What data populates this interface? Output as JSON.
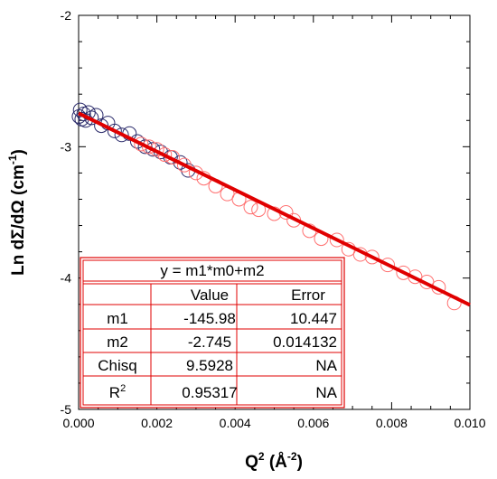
{
  "chart_data": {
    "type": "scatter",
    "xlabel": {
      "base": "Q",
      "base_sup": "2",
      "unit": " (Å",
      "unit_sup": "-2",
      "close": ")"
    },
    "ylabel": {
      "base": "Ln dΣ/dΩ (cm",
      "sup": "-1",
      "close": ")"
    },
    "xlim": [
      0.0,
      0.01
    ],
    "ylim": [
      -5,
      -2
    ],
    "x_ticks": [
      "0.000",
      "0.002",
      "0.004",
      "0.006",
      "0.008",
      "0.010"
    ],
    "y_ticks": [
      "-2",
      "-3",
      "-4",
      "-5"
    ],
    "grid": false,
    "colors": {
      "fit_line": "#e00000",
      "table": "#e00000",
      "marker_red": "#ff6666",
      "marker_navy": "#2a2a6a"
    },
    "series": [
      {
        "marker": "open-circle",
        "color": "#2a2a6a",
        "x": [
          1e-05,
          4e-05,
          8e-05,
          0.00013,
          0.00018,
          0.00025,
          0.00033,
          0.00045,
          0.00058,
          0.00075,
          0.00092,
          0.0011,
          0.0013,
          0.0015,
          0.0017,
          0.0019,
          0.0021,
          0.00235,
          0.0026,
          0.0028
        ],
        "y": [
          -2.77,
          -2.72,
          -2.79,
          -2.75,
          -2.8,
          -2.74,
          -2.78,
          -2.76,
          -2.84,
          -2.82,
          -2.88,
          -2.91,
          -2.9,
          -2.96,
          -3.0,
          -3.02,
          -3.04,
          -3.08,
          -3.12,
          -3.18
        ]
      },
      {
        "marker": "open-circle",
        "color": "#ff7070",
        "x": [
          0.0016,
          0.0018,
          0.002,
          0.0022,
          0.0024,
          0.0027,
          0.003,
          0.0032,
          0.0035,
          0.0038,
          0.0041,
          0.0044,
          0.0046,
          0.005,
          0.0053,
          0.0055,
          0.0059,
          0.0062,
          0.0066,
          0.0069,
          0.0072,
          0.0075,
          0.0079,
          0.0083,
          0.0086,
          0.0089,
          0.0092,
          0.0096
        ],
        "y": [
          -2.98,
          -3.0,
          -3.02,
          -3.06,
          -3.08,
          -3.14,
          -3.2,
          -3.24,
          -3.3,
          -3.36,
          -3.4,
          -3.46,
          -3.48,
          -3.51,
          -3.5,
          -3.56,
          -3.64,
          -3.7,
          -3.71,
          -3.78,
          -3.82,
          -3.84,
          -3.9,
          -3.96,
          -3.99,
          -4.03,
          -4.07,
          -4.19
        ]
      }
    ],
    "fit": {
      "slope": -145.98,
      "intercept": -2.745,
      "x_range": [
        0.0,
        0.01
      ]
    },
    "fit_table": {
      "equation": "y = m1*m0+m2",
      "columns": [
        "",
        "Value",
        "Error"
      ],
      "rows": [
        {
          "name": "m1",
          "name_sup": "",
          "value": "-145.98",
          "error": "10.447"
        },
        {
          "name": "m2",
          "name_sup": "",
          "value": "-2.745",
          "error": "0.014132"
        },
        {
          "name": "Chisq",
          "name_sup": "",
          "value": "9.5928",
          "error": "NA"
        },
        {
          "name": "R",
          "name_sup": "2",
          "value": "0.95317",
          "error": "NA"
        }
      ]
    }
  }
}
